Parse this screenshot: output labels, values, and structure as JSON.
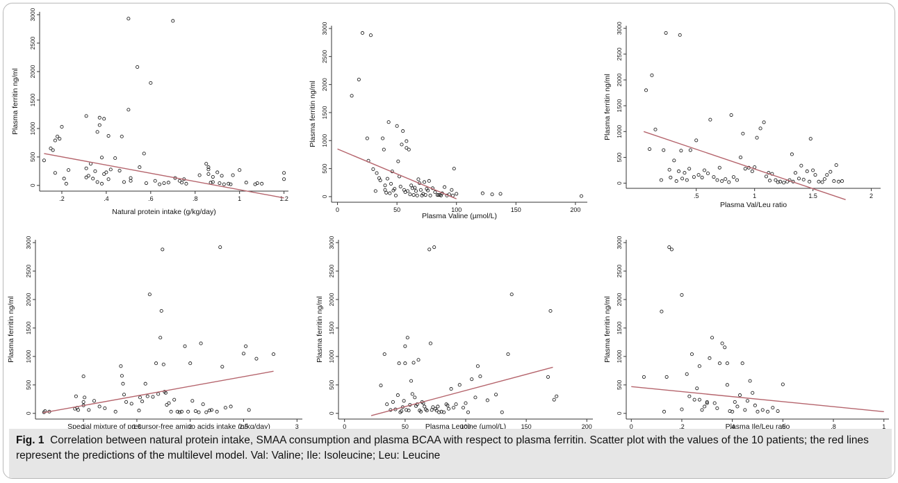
{
  "figure": {
    "caption_label": "Fig. 1",
    "caption_text": "Correlation between natural protein intake, SMAA consumption and plasma BCAA with respect to plasma ferritin. Scatter plot with the values of the 10 patients; the red lines represent the predictions of the multilevel model. Val: Valine; Ile: Isoleucine; Leu: Leucine",
    "line_color": "#b5646c",
    "point_color": "#222222"
  },
  "chart_data": [
    {
      "type": "scatter",
      "xlabel": "Natural protein intake (g/kg/day)",
      "ylabel": "Plasma ferritin ng/ml",
      "xlim": [
        0.1,
        1.22
      ],
      "ylim": [
        -100,
        3050
      ],
      "xticks": [
        0.2,
        0.4,
        0.6,
        0.8,
        1,
        1.2
      ],
      "xtick_labels": [
        ".2",
        ".4",
        ".6",
        ".8",
        "1",
        "1.2"
      ],
      "yticks": [
        0,
        500,
        1000,
        1500,
        2000,
        2500,
        3000
      ],
      "fit_line": [
        [
          0.12,
          560
        ],
        [
          1.2,
          -220
        ]
      ],
      "x": [
        0.12,
        0.15,
        0.16,
        0.17,
        0.17,
        0.18,
        0.19,
        0.2,
        0.21,
        0.22,
        0.23,
        0.31,
        0.31,
        0.31,
        0.32,
        0.33,
        0.34,
        0.35,
        0.36,
        0.36,
        0.37,
        0.37,
        0.38,
        0.38,
        0.39,
        0.39,
        0.4,
        0.41,
        0.41,
        0.42,
        0.44,
        0.46,
        0.47,
        0.48,
        0.5,
        0.5,
        0.51,
        0.51,
        0.54,
        0.55,
        0.57,
        0.58,
        0.6,
        0.62,
        0.64,
        0.66,
        0.68,
        0.7,
        0.71,
        0.73,
        0.74,
        0.75,
        0.76,
        0.82,
        0.85,
        0.86,
        0.86,
        0.86,
        0.87,
        0.88,
        0.88,
        0.9,
        0.91,
        0.92,
        0.93,
        0.95,
        0.96,
        0.97,
        1.0,
        1.03,
        1.07,
        1.08,
        1.1,
        1.2,
        1.2
      ],
      "y": [
        440,
        650,
        620,
        790,
        220,
        860,
        820,
        1030,
        120,
        30,
        270,
        1220,
        300,
        140,
        170,
        380,
        120,
        250,
        60,
        940,
        1060,
        1190,
        30,
        490,
        1170,
        200,
        230,
        110,
        870,
        280,
        480,
        260,
        860,
        60,
        1330,
        2930,
        130,
        80,
        2080,
        320,
        560,
        40,
        1800,
        80,
        20,
        40,
        50,
        2890,
        130,
        80,
        50,
        110,
        30,
        180,
        380,
        200,
        320,
        280,
        50,
        60,
        150,
        230,
        40,
        170,
        20,
        30,
        20,
        180,
        270,
        50,
        20,
        40,
        30,
        220,
        110
      ]
    },
    {
      "type": "scatter",
      "xlabel": "Plasma Valine (µmol/L)",
      "ylabel": "Plasma ferritin ng/ml",
      "xlim": [
        -5,
        210
      ],
      "ylim": [
        -100,
        3050
      ],
      "xticks": [
        0,
        50,
        100,
        150,
        200
      ],
      "xtick_labels": [
        "0",
        "50",
        "100",
        "150",
        "200"
      ],
      "yticks": [
        0,
        500,
        1000,
        1500,
        2000,
        2500,
        3000
      ],
      "fit_line": [
        [
          0,
          850
        ],
        [
          100,
          -40
        ]
      ],
      "x": [
        12,
        18,
        21,
        25,
        26,
        28,
        30,
        32,
        33,
        35,
        36,
        38,
        39,
        40,
        40,
        41,
        42,
        43,
        44,
        45,
        46,
        47,
        48,
        49,
        50,
        51,
        52,
        53,
        54,
        55,
        56,
        57,
        58,
        58,
        59,
        60,
        61,
        62,
        63,
        64,
        65,
        66,
        67,
        68,
        69,
        70,
        71,
        72,
        73,
        74,
        75,
        76,
        77,
        78,
        80,
        82,
        84,
        85,
        86,
        87,
        88,
        90,
        92,
        94,
        96,
        97,
        98,
        100,
        122,
        130,
        137,
        205
      ],
      "y": [
        1800,
        2090,
        2920,
        1040,
        640,
        2880,
        490,
        100,
        420,
        330,
        290,
        1040,
        840,
        200,
        120,
        70,
        320,
        1330,
        60,
        230,
        450,
        110,
        140,
        20,
        1260,
        630,
        360,
        180,
        930,
        1170,
        120,
        80,
        870,
        990,
        100,
        840,
        40,
        200,
        150,
        30,
        160,
        100,
        20,
        310,
        240,
        120,
        20,
        50,
        260,
        30,
        140,
        110,
        280,
        20,
        150,
        80,
        30,
        30,
        30,
        20,
        60,
        170,
        20,
        40,
        120,
        20,
        500,
        50,
        60,
        40,
        50,
        10
      ]
    },
    {
      "type": "scatter",
      "xlabel": "Plasma Val/Leu ratio",
      "ylabel": "Plasma ferritin ng/ml",
      "xlim": [
        -0.1,
        2.08
      ],
      "ylim": [
        -100,
        3050
      ],
      "xticks": [
        0.5,
        1,
        1.5,
        2
      ],
      "xtick_labels": [
        ".5",
        "1",
        "1.5",
        "2"
      ],
      "yticks": [
        0,
        500,
        1000,
        1500,
        2000,
        2500,
        3000
      ],
      "fit_line": [
        [
          0.05,
          1000
        ],
        [
          1.78,
          -320
        ]
      ],
      "x": [
        0.07,
        0.1,
        0.12,
        0.15,
        0.2,
        0.22,
        0.24,
        0.27,
        0.28,
        0.31,
        0.33,
        0.35,
        0.36,
        0.37,
        0.38,
        0.4,
        0.42,
        0.44,
        0.45,
        0.48,
        0.5,
        0.52,
        0.55,
        0.57,
        0.6,
        0.62,
        0.65,
        0.68,
        0.7,
        0.72,
        0.75,
        0.78,
        0.8,
        0.82,
        0.85,
        0.88,
        0.9,
        0.92,
        0.95,
        0.98,
        1.0,
        1.02,
        1.05,
        1.08,
        1.1,
        1.12,
        1.13,
        1.15,
        1.18,
        1.2,
        1.22,
        1.25,
        1.28,
        1.3,
        1.32,
        1.33,
        1.35,
        1.38,
        1.4,
        1.42,
        1.45,
        1.47,
        1.48,
        1.5,
        1.52,
        1.55,
        1.58,
        1.6,
        1.62,
        1.65,
        1.68,
        1.7,
        1.72,
        1.75
      ],
      "y": [
        1800,
        660,
        2090,
        1040,
        60,
        640,
        2910,
        260,
        110,
        440,
        40,
        230,
        2870,
        630,
        90,
        200,
        60,
        280,
        640,
        120,
        830,
        160,
        110,
        250,
        190,
        1230,
        120,
        60,
        300,
        40,
        80,
        20,
        1320,
        120,
        60,
        500,
        960,
        280,
        300,
        230,
        310,
        880,
        1060,
        1180,
        130,
        200,
        50,
        180,
        60,
        20,
        30,
        10,
        30,
        60,
        560,
        30,
        200,
        90,
        340,
        70,
        230,
        30,
        860,
        250,
        160,
        30,
        20,
        80,
        160,
        220,
        40,
        350,
        30,
        40
      ]
    },
    {
      "type": "scatter",
      "xlabel": "Special mixture of precursor-free amino acids intake (g/kg/day)",
      "ylabel": "Plasma ferritin ng/ml",
      "xlim": [
        0.55,
        3.05
      ],
      "ylim": [
        -100,
        3050
      ],
      "xticks": [
        0.5,
        1,
        1.5,
        2,
        2.5,
        3
      ],
      "xtick_labels": [
        ".5",
        "1",
        "1.5",
        "2",
        "2.5",
        "3"
      ],
      "yticks": [
        0,
        500,
        1000,
        1500,
        2000,
        2500,
        3000
      ],
      "fit_line": [
        [
          0.62,
          10
        ],
        [
          2.78,
          740
        ]
      ],
      "x": [
        0.63,
        0.64,
        0.68,
        0.92,
        0.93,
        0.94,
        0.95,
        1.0,
        1.0,
        1.0,
        1.01,
        1.05,
        1.1,
        1.15,
        1.2,
        1.3,
        1.35,
        1.36,
        1.37,
        1.38,
        1.4,
        1.45,
        1.52,
        1.53,
        1.55,
        1.58,
        1.6,
        1.62,
        1.65,
        1.68,
        1.7,
        1.72,
        1.73,
        1.74,
        1.75,
        1.76,
        1.77,
        1.78,
        1.8,
        1.82,
        1.85,
        1.88,
        1.9,
        1.92,
        1.95,
        1.98,
        2.0,
        2.02,
        2.05,
        2.08,
        2.1,
        2.12,
        2.15,
        2.18,
        2.2,
        2.25,
        2.28,
        2.3,
        2.33,
        2.38,
        2.5,
        2.52,
        2.55,
        2.62,
        2.78
      ],
      "y": [
        20,
        40,
        30,
        80,
        300,
        100,
        60,
        200,
        650,
        140,
        280,
        60,
        220,
        120,
        90,
        30,
        830,
        660,
        520,
        330,
        200,
        170,
        50,
        280,
        210,
        520,
        300,
        2090,
        290,
        880,
        340,
        1330,
        1800,
        2880,
        860,
        380,
        360,
        150,
        180,
        30,
        240,
        30,
        20,
        30,
        1180,
        30,
        880,
        220,
        40,
        20,
        1230,
        160,
        20,
        50,
        60,
        30,
        2920,
        820,
        100,
        120,
        1050,
        1180,
        60,
        960,
        1040
      ]
    },
    {
      "type": "scatter",
      "xlabel": "Plasma Leucine (µmol/L)",
      "ylabel": "Plasma ferritin ng/ml",
      "xlim": [
        -5,
        205
      ],
      "ylim": [
        -100,
        3050
      ],
      "xticks": [
        0,
        50,
        100,
        150,
        200
      ],
      "xtick_labels": [
        "0",
        "50",
        "100",
        "150",
        "200"
      ],
      "yticks": [
        0,
        500,
        1000,
        1500,
        2000,
        2500,
        3000
      ],
      "fit_line": [
        [
          22,
          -40
        ],
        [
          172,
          810
        ]
      ],
      "x": [
        30,
        33,
        35,
        38,
        40,
        42,
        44,
        45,
        46,
        47,
        48,
        49,
        50,
        50,
        51,
        52,
        53,
        54,
        55,
        56,
        57,
        58,
        59,
        60,
        61,
        62,
        63,
        64,
        65,
        66,
        67,
        68,
        70,
        71,
        72,
        73,
        74,
        75,
        76,
        77,
        78,
        80,
        82,
        84,
        85,
        86,
        88,
        90,
        92,
        95,
        98,
        100,
        102,
        105,
        108,
        110,
        112,
        118,
        125,
        130,
        135,
        138,
        168,
        170,
        173,
        175
      ],
      "y": [
        490,
        1040,
        160,
        60,
        200,
        70,
        320,
        880,
        20,
        40,
        110,
        220,
        1180,
        880,
        60,
        1330,
        50,
        150,
        570,
        340,
        890,
        280,
        130,
        160,
        940,
        50,
        30,
        200,
        180,
        120,
        70,
        50,
        2880,
        1230,
        60,
        110,
        2920,
        80,
        50,
        120,
        20,
        30,
        20,
        160,
        140,
        80,
        430,
        100,
        160,
        500,
        100,
        180,
        20,
        600,
        280,
        830,
        650,
        230,
        330,
        20,
        1040,
        2090,
        640,
        1800,
        240,
        300
      ]
    },
    {
      "type": "scatter",
      "xlabel": "Plasma Ile/Leu ratio",
      "ylabel": "Plasma ferritin ng/ml",
      "xlim": [
        -0.02,
        1.02
      ],
      "ylim": [
        -100,
        3050
      ],
      "xticks": [
        0,
        0.2,
        0.4,
        0.6,
        0.8,
        1
      ],
      "xtick_labels": [
        "0",
        ".2",
        ".4",
        ".6",
        ".8",
        "1"
      ],
      "yticks": [
        0,
        500,
        1000,
        1500,
        2000,
        2500,
        3000
      ],
      "fit_line": [
        [
          0,
          470
        ],
        [
          1,
          30
        ]
      ],
      "x": [
        0.05,
        0.12,
        0.13,
        0.14,
        0.15,
        0.16,
        0.2,
        0.22,
        0.24,
        0.25,
        0.26,
        0.27,
        0.28,
        0.29,
        0.3,
        0.31,
        0.32,
        0.33,
        0.34,
        0.35,
        0.36,
        0.37,
        0.38,
        0.38,
        0.39,
        0.4,
        0.41,
        0.42,
        0.43,
        0.44,
        0.45,
        0.46,
        0.47,
        0.48,
        0.49,
        0.5,
        0.52,
        0.54,
        0.56,
        0.58,
        0.6,
        0.2,
        0.23,
        0.27,
        0.3
      ],
      "y": [
        640,
        1790,
        30,
        640,
        2920,
        2880,
        2080,
        690,
        1040,
        240,
        440,
        830,
        60,
        120,
        200,
        970,
        1330,
        180,
        90,
        880,
        1230,
        1160,
        500,
        880,
        40,
        30,
        200,
        120,
        320,
        880,
        60,
        220,
        570,
        360,
        140,
        30,
        60,
        30,
        100,
        40,
        510,
        70,
        300,
        240,
        180
      ]
    }
  ]
}
